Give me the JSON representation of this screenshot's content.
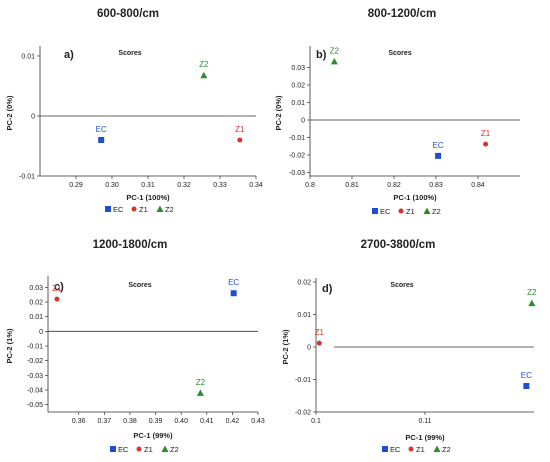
{
  "colors": {
    "EC": "#1f4fd1",
    "Z1": "#d9342b",
    "Z2": "#2e8b2e",
    "axis": "#333333",
    "text": "#222222"
  },
  "chart_data": [
    {
      "type": "scatter",
      "heading": "600-800/cm",
      "panel_label": "a)",
      "title": "Scores",
      "xlabel": "PC-1 (100%)",
      "ylabel": "PC-2 (0%)",
      "xlim": [
        0.28,
        0.34
      ],
      "ylim": [
        -0.01,
        0.011
      ],
      "xticks": [
        "0.29",
        "0.30",
        "0.31",
        "0.32",
        "0.33",
        "0.34"
      ],
      "xtick_values": [
        0.29,
        0.3,
        0.31,
        0.32,
        0.33,
        0.34
      ],
      "yticks": [
        "0.01",
        "0",
        "-0.01"
      ],
      "ytick_values": [
        0.01,
        0,
        -0.01
      ],
      "zero_line": 0,
      "series": [
        {
          "name": "EC",
          "marker": "square",
          "x": 0.297,
          "y": -0.004
        },
        {
          "name": "Z1",
          "marker": "circle",
          "x": 0.3355,
          "y": -0.004
        },
        {
          "name": "Z2",
          "marker": "triangle",
          "x": 0.3255,
          "y": 0.0068
        }
      ],
      "legend": [
        "EC",
        "Z1",
        "Z2"
      ]
    },
    {
      "type": "scatter",
      "heading": "800-1200/cm",
      "panel_label": "b)",
      "title": "Scores",
      "xlabel": "PC-1 (100%)",
      "ylabel": "PC-2 (0%)",
      "xlim": [
        0.8,
        0.85
      ],
      "ylim": [
        -0.032,
        0.04
      ],
      "xticks": [
        "0.8",
        "0.81",
        "0.82",
        "0.83",
        "0.84"
      ],
      "xtick_values": [
        0.8,
        0.81,
        0.82,
        0.83,
        0.84
      ],
      "yticks": [
        "0.03",
        "0.02",
        "0.01",
        "0",
        "-0.01",
        "-0.02",
        "-0.03"
      ],
      "ytick_values": [
        0.03,
        0.02,
        0.01,
        0,
        -0.01,
        -0.02,
        -0.03
      ],
      "zero_line": 0,
      "series": [
        {
          "name": "EC",
          "marker": "square",
          "x": 0.8305,
          "y": -0.0205
        },
        {
          "name": "Z1",
          "marker": "circle",
          "x": 0.8418,
          "y": -0.0138
        },
        {
          "name": "Z2",
          "marker": "triangle",
          "x": 0.8058,
          "y": 0.0335
        }
      ],
      "legend": [
        "EC",
        "Z1",
        "Z2"
      ]
    },
    {
      "type": "scatter",
      "heading": "1200-1800/cm",
      "panel_label": "c)",
      "title": "Scores",
      "xlabel": "PC-1 (99%)",
      "ylabel": "PC-2 (1%)",
      "xlim": [
        0.348,
        0.43
      ],
      "ylim": [
        -0.055,
        0.035
      ],
      "xticks": [
        "0.36",
        "0.37",
        "0.38",
        "0.39",
        "0.40",
        "0.41",
        "0.42",
        "0.43"
      ],
      "xtick_values": [
        0.36,
        0.37,
        0.38,
        0.39,
        0.4,
        0.41,
        0.42,
        0.43
      ],
      "yticks": [
        "0.03",
        "0.02",
        "0.01",
        "0",
        "-0.01",
        "-0.02",
        "-0.03",
        "-0.04",
        "-0.05"
      ],
      "ytick_values": [
        0.03,
        0.02,
        0.01,
        0,
        -0.01,
        -0.02,
        -0.03,
        -0.04,
        -0.05
      ],
      "zero_line": 0,
      "series": [
        {
          "name": "EC",
          "marker": "square",
          "x": 0.4205,
          "y": 0.026
        },
        {
          "name": "Z1",
          "marker": "circle",
          "x": 0.3515,
          "y": 0.022
        },
        {
          "name": "Z2",
          "marker": "triangle",
          "x": 0.4075,
          "y": -0.042
        }
      ],
      "legend": [
        "EC",
        "Z1",
        "Z2"
      ]
    },
    {
      "type": "scatter",
      "heading": "2700-3800/cm",
      "panel_label": "d)",
      "title": "Scores",
      "xlabel": "PC-1 (99%)",
      "ylabel": "PC-2 (1%)",
      "xlim": [
        0.1,
        0.12
      ],
      "ylim": [
        -0.02,
        0.02
      ],
      "xticks": [
        "0.1",
        "0.11"
      ],
      "xtick_values": [
        0.1,
        0.11
      ],
      "yticks": [
        "0.02",
        "0.01",
        "0",
        "-0.01",
        "-0.02"
      ],
      "ytick_values": [
        0.02,
        0.01,
        0,
        -0.01,
        -0.02
      ],
      "zero_line": 0,
      "series": [
        {
          "name": "EC",
          "marker": "square",
          "x": 0.1193,
          "y": -0.012
        },
        {
          "name": "Z1",
          "marker": "circle",
          "x": 0.1003,
          "y": 0.0012
        },
        {
          "name": "Z2",
          "marker": "triangle",
          "x": 0.1198,
          "y": 0.0135
        }
      ],
      "legend": [
        "EC",
        "Z1",
        "Z2"
      ]
    }
  ]
}
